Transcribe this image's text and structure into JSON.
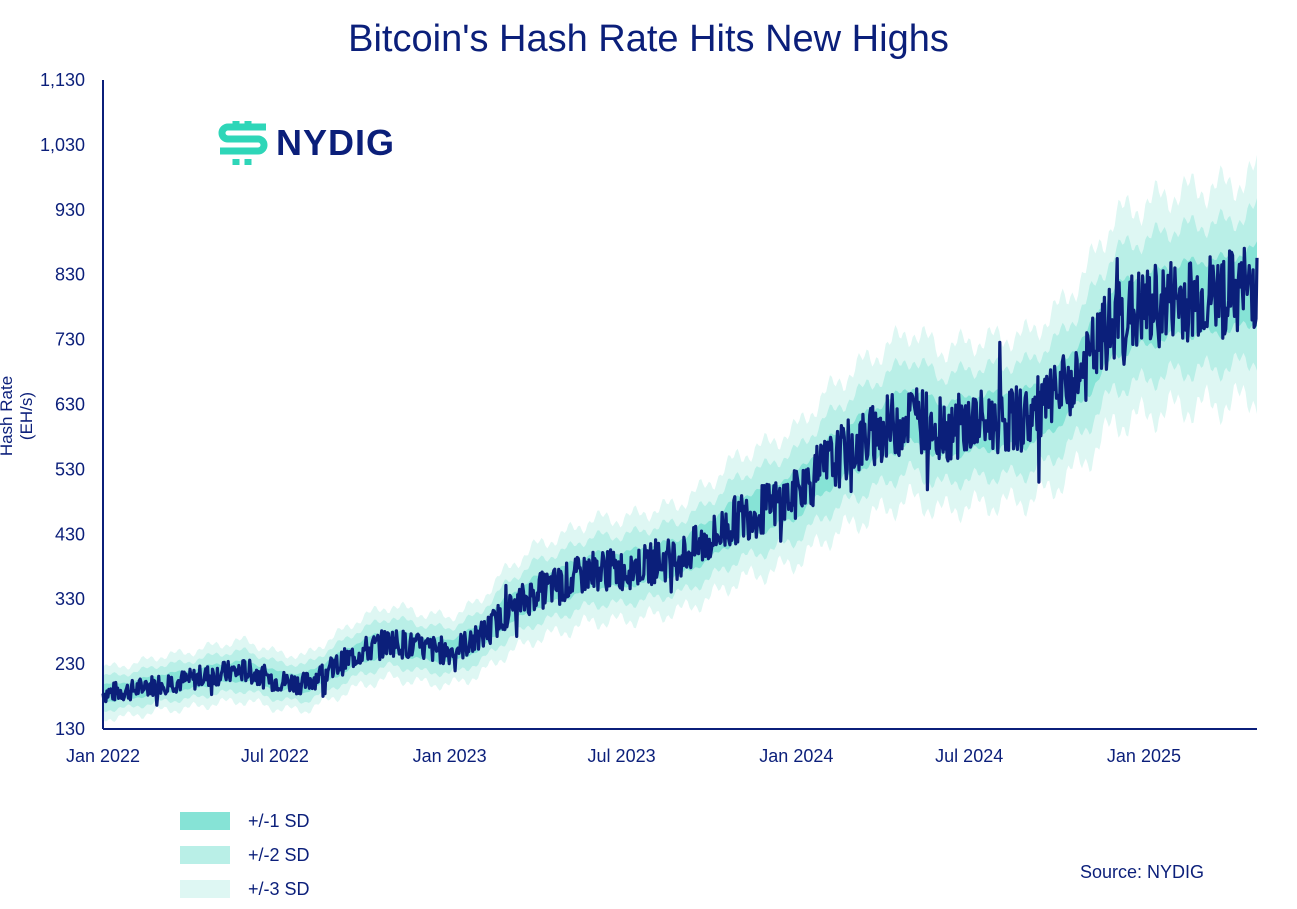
{
  "chart_data": {
    "type": "line",
    "title": "Bitcoin's Hash Rate Hits New Highs",
    "ylabel": "Hash Rate (EH/s)",
    "xlabel": "",
    "ylim": [
      130,
      1130
    ],
    "yticks": [
      "1,130",
      "1,030",
      "930",
      "830",
      "730",
      "630",
      "530",
      "430",
      "330",
      "230",
      "130"
    ],
    "ytick_values": [
      1130,
      1030,
      930,
      830,
      730,
      630,
      530,
      430,
      330,
      230,
      130
    ],
    "xlim": [
      "2022-01-01",
      "2025-04-30"
    ],
    "xticks": [
      {
        "label": "Jan 2022",
        "date": "2022-01-01"
      },
      {
        "label": "Jul 2022",
        "date": "2022-07-01"
      },
      {
        "label": "Jan 2023",
        "date": "2023-01-01"
      },
      {
        "label": "Jul 2023",
        "date": "2023-07-01"
      },
      {
        "label": "Jan 2024",
        "date": "2024-01-01"
      },
      {
        "label": "Jul 2024",
        "date": "2024-07-01"
      },
      {
        "label": "Jan 2025",
        "date": "2025-01-01"
      }
    ],
    "grid": false,
    "legend_position": "bottom-left",
    "series": [
      {
        "type": "line",
        "color": "#0b1f7a",
        "x": [
          "2022-01-01",
          "2022-02-01",
          "2022-03-01",
          "2022-04-01",
          "2022-05-01",
          "2022-06-01",
          "2022-07-01",
          "2022-08-01",
          "2022-09-01",
          "2022-10-01",
          "2022-11-01",
          "2022-12-01",
          "2023-01-01",
          "2023-02-01",
          "2023-03-01",
          "2023-04-01",
          "2023-05-01",
          "2023-06-01",
          "2023-07-01",
          "2023-08-01",
          "2023-09-01",
          "2023-10-01",
          "2023-11-01",
          "2023-12-01",
          "2024-01-01",
          "2024-02-01",
          "2024-03-01",
          "2024-04-01",
          "2024-05-01",
          "2024-06-01",
          "2024-07-01",
          "2024-08-01",
          "2024-09-01",
          "2024-10-01",
          "2024-11-01",
          "2024-12-01",
          "2025-01-01",
          "2025-02-01",
          "2025-03-01",
          "2025-04-01",
          "2025-04-30"
        ],
        "values": [
          185,
          190,
          200,
          205,
          215,
          220,
          205,
          200,
          225,
          250,
          265,
          255,
          250,
          270,
          310,
          340,
          355,
          375,
          375,
          385,
          395,
          420,
          455,
          470,
          490,
          535,
          565,
          590,
          615,
          590,
          600,
          605,
          610,
          640,
          690,
          760,
          775,
          790,
          795,
          800,
          815
        ]
      }
    ],
    "bands": [
      {
        "name": "+/-1 SD",
        "color": "#86e3d6",
        "sd": 1
      },
      {
        "name": "+/-2 SD",
        "color": "#b9efe7",
        "sd": 2
      },
      {
        "name": "+/-3 SD",
        "color": "#def7f3",
        "sd": 3
      }
    ],
    "band_sd_fraction": 0.07,
    "source": "Source: NYDIG"
  },
  "logo": {
    "text": "NYDIG",
    "mark_color": "#2ed6b8"
  }
}
